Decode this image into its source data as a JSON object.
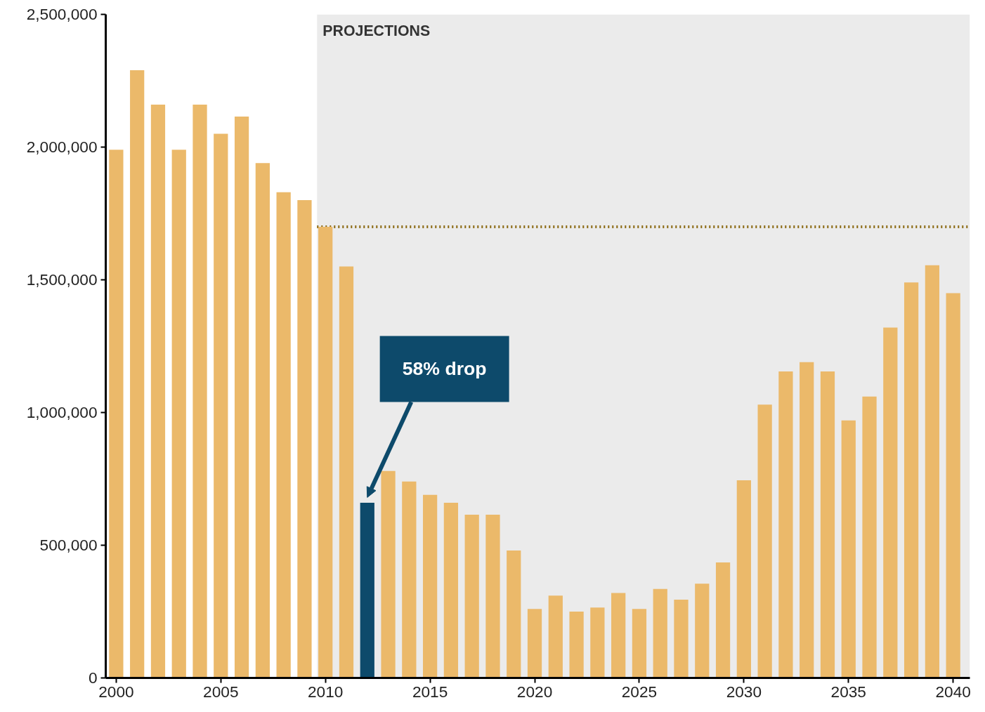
{
  "chart_data": {
    "type": "bar",
    "x": [
      2000,
      2001,
      2002,
      2003,
      2004,
      2005,
      2006,
      2007,
      2008,
      2009,
      2010,
      2011,
      2012,
      2013,
      2014,
      2015,
      2016,
      2017,
      2018,
      2019,
      2020,
      2021,
      2022,
      2023,
      2024,
      2025,
      2026,
      2027,
      2028,
      2029,
      2030,
      2031,
      2032,
      2033,
      2034,
      2035,
      2036,
      2037,
      2038,
      2039,
      2040
    ],
    "values": [
      1990000,
      2290000,
      2160000,
      1990000,
      2160000,
      2050000,
      2115000,
      1940000,
      1830000,
      1800000,
      1700000,
      1550000,
      660000,
      780000,
      740000,
      690000,
      660000,
      615000,
      615000,
      480000,
      260000,
      310000,
      250000,
      265000,
      320000,
      260000,
      335000,
      295000,
      355000,
      435000,
      745000,
      1030000,
      1155000,
      1190000,
      1155000,
      970000,
      1060000,
      1320000,
      1490000,
      1555000,
      1450000
    ],
    "colors": [
      "#ebb96a",
      "#ebb96a",
      "#ebb96a",
      "#ebb96a",
      "#ebb96a",
      "#ebb96a",
      "#ebb96a",
      "#ebb96a",
      "#ebb96a",
      "#ebb96a",
      "#ebb96a",
      "#ebb96a",
      "#0d4a6b",
      "#ebb96a",
      "#ebb96a",
      "#ebb96a",
      "#ebb96a",
      "#ebb96a",
      "#ebb96a",
      "#ebb96a",
      "#ebb96a",
      "#ebb96a",
      "#ebb96a",
      "#ebb96a",
      "#ebb96a",
      "#ebb96a",
      "#ebb96a",
      "#ebb96a",
      "#ebb96a",
      "#ebb96a",
      "#ebb96a",
      "#ebb96a",
      "#ebb96a",
      "#ebb96a",
      "#ebb96a",
      "#ebb96a",
      "#ebb96a",
      "#ebb96a",
      "#ebb96a",
      "#ebb96a",
      "#ebb96a"
    ],
    "xlim": [
      1999.5,
      2040.8
    ],
    "xticks": [
      2000,
      2005,
      2010,
      2015,
      2020,
      2025,
      2030,
      2035,
      2040
    ],
    "ylim": [
      0,
      2500000
    ],
    "yticks": [
      {
        "value": 0,
        "label": "0"
      },
      {
        "value": 500000,
        "label": "500,000"
      },
      {
        "value": 1000000,
        "label": "1,000,000"
      },
      {
        "value": 1500000,
        "label": "1,500,000"
      },
      {
        "value": 2000000,
        "label": "2,000,000"
      },
      {
        "value": 2500000,
        "label": "2,500,000"
      }
    ],
    "bands": [
      {
        "axis": "x",
        "from": 2009.6,
        "to": 2040.8,
        "label": "PROJECTIONS",
        "color": "#ebebeb"
      }
    ],
    "ref_lines": [
      {
        "axis": "y",
        "value": 1700000,
        "color": "#8b6a12",
        "line_style": "dotted"
      }
    ],
    "annotations": [
      {
        "text": "58% drop",
        "x": 2012,
        "y": 660000
      }
    ],
    "grid": false
  }
}
